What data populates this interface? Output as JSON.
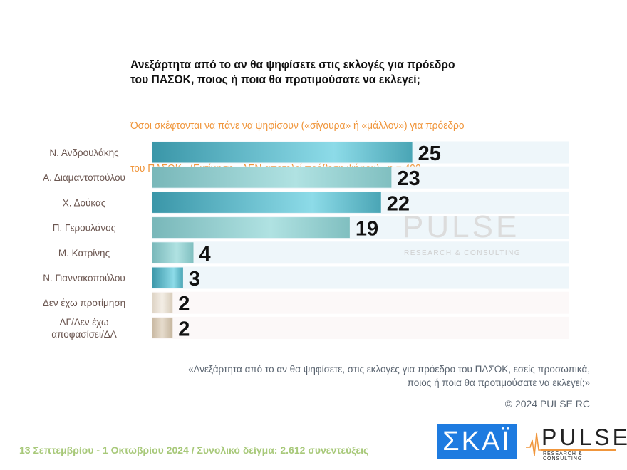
{
  "chart_data": {
    "type": "bar",
    "orientation": "horizontal",
    "title": "Ανεξάρτητα από το αν θα ψηφίσετε στις εκλογές για πρόεδρο του ΠΑΣΟΚ, ποιος ή ποια θα προτιμούσατε να εκλεγεί;",
    "title_lines": [
      "Ανεξάρτητα από το αν θα ψηφίσετε στις εκλογές για πρόεδρο",
      "του ΠΑΣΟΚ, ποιος ή ποια θα προτιμούσατε να εκλεγεί;"
    ],
    "subtitle_lines": [
      "Όσοι σκέφτονται να πάνε να ψηφίσουν («σίγουρα» ή «μάλλον») για πρόεδρο",
      "του ΠΑΣΟΚ   (Εκτίμηση - ΔΕΝ αποτελεί πρόθεση ψήφου)   n = 492"
    ],
    "categories": [
      [
        "Ν. Ανδρουλάκης"
      ],
      [
        "Α. Διαμαντοπούλου"
      ],
      [
        "Χ. Δούκας"
      ],
      [
        "Π. Γερουλάνος"
      ],
      [
        "Μ. Κατρίνης"
      ],
      [
        "Ν. Γιαννακοπούλου"
      ],
      [
        "Δεν έχω προτίμηση"
      ],
      [
        "ΔΓ/Δεν έχω",
        "αποφασίσει/ΔΑ"
      ]
    ],
    "values": [
      25,
      23,
      22,
      19,
      4,
      3,
      2,
      2
    ],
    "xlim": [
      0,
      40
    ],
    "grid": false,
    "bar_colors": [
      "#3a9fb0",
      "#7fbfc0",
      "#3a9fb0",
      "#7fbfc0",
      "#7fbfc0",
      "#3a9fb0",
      "#e6ddd0",
      "#d6c8b4"
    ]
  },
  "note_lines": [
    "«Ανεξάρτητα από το αν θα ψηφίσετε, στις εκλογές για πρόεδρο του ΠΑΣΟΚ, εσείς προσωπικά,",
    "ποιος ή ποια θα προτιμούσατε να εκλεγεί;»"
  ],
  "copyright": "© 2024 PULSE RC",
  "footer": "13 Σεπτεμβρίου - 1 Οκτωβρίου 2024  /  Συνολικό δείγμα:  2.612 συνεντεύξεις",
  "logos": {
    "skai": "ΣΚΑΪ",
    "pulse": "PULSE",
    "pulse_sub": "RESEARCH & CONSULTING"
  },
  "watermark": {
    "main": "PULSE",
    "sub": "RESEARCH & CONSULTING"
  }
}
